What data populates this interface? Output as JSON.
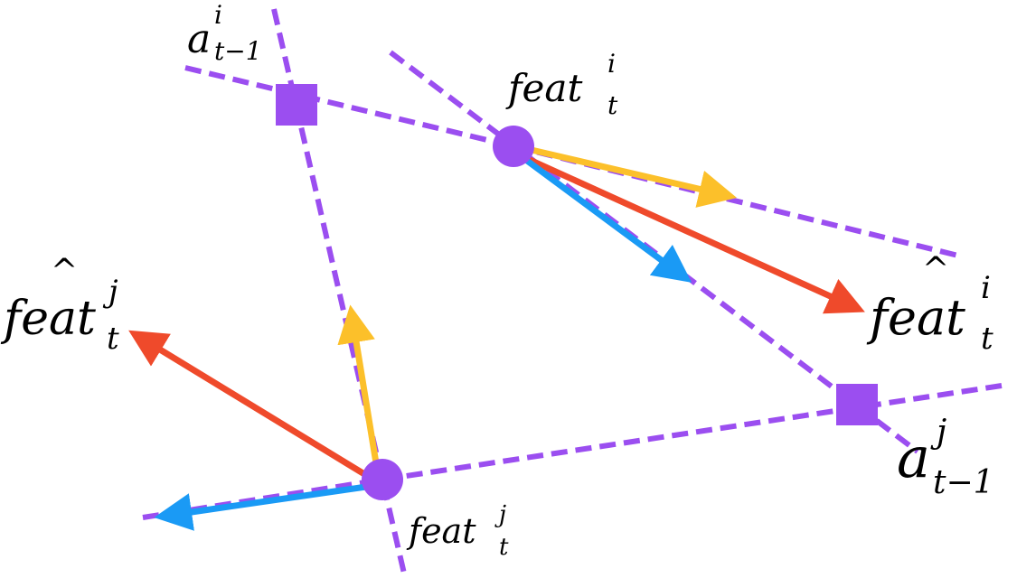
{
  "colors": {
    "background": "#ffffff",
    "node": "#9b4ef0",
    "dashed_line": "#9b4ef0",
    "arrow_red": "#ef4a2b",
    "arrow_yellow": "#fcc02a",
    "arrow_blue": "#1a9af5"
  },
  "labels": {
    "a_i_base": "a",
    "a_i_sup": "i",
    "a_i_sub": "t−1",
    "feat_i_base": "feat",
    "feat_i_sup": "i",
    "feat_i_sub": "t",
    "feat_j_base": "feat",
    "feat_j_sup": "j",
    "feat_j_sub": "t",
    "featpred_i_base": "feat",
    "featpred_i_sup": "i",
    "featpred_i_sub": "t",
    "featpred_i_hat": "^",
    "featpred_j_base": "feat",
    "featpred_j_sup": "j",
    "featpred_j_sub": "t",
    "featpred_j_hat": "^",
    "a_j_base": "a",
    "a_j_sup": "j",
    "a_j_sub": "t−1"
  },
  "nodes": [
    {
      "id": "a_prev_i",
      "shape": "square"
    },
    {
      "id": "feat_i",
      "shape": "circle"
    },
    {
      "id": "a_prev_j",
      "shape": "square"
    },
    {
      "id": "feat_j",
      "shape": "circle"
    }
  ],
  "arrows": [
    {
      "id": "feat_i_yellow",
      "from": "feat_i",
      "color": "arrow_yellow"
    },
    {
      "id": "feat_i_blue",
      "from": "feat_i",
      "color": "arrow_blue"
    },
    {
      "id": "feat_i_red",
      "from": "feat_i",
      "color": "arrow_red",
      "to": "featpred_i"
    },
    {
      "id": "feat_j_red",
      "from": "feat_j",
      "color": "arrow_red",
      "to": "featpred_j"
    },
    {
      "id": "feat_j_yellow",
      "from": "feat_j",
      "color": "arrow_yellow"
    },
    {
      "id": "feat_j_blue",
      "from": "feat_j",
      "color": "arrow_blue"
    }
  ]
}
